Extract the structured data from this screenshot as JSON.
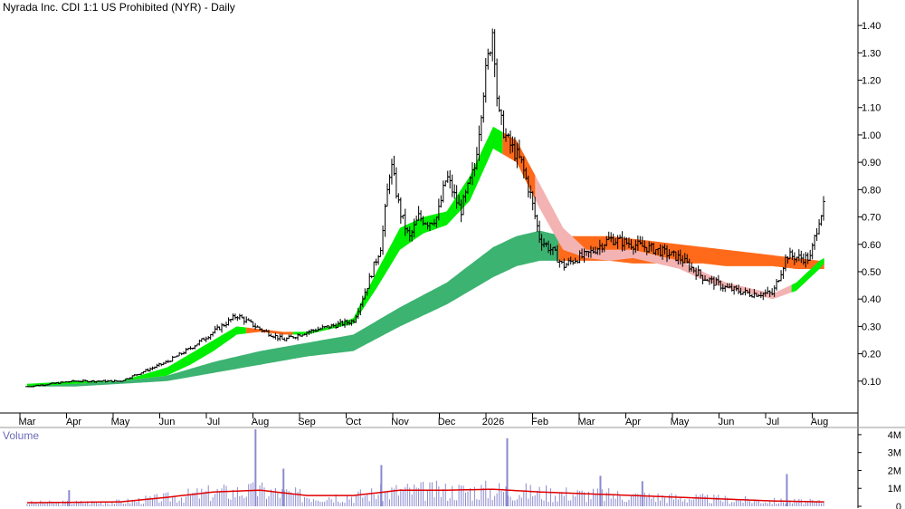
{
  "title": "Nyrada Inc. CDI 1:1 US Prohibited (NYR) - Daily",
  "colors": {
    "price_bar": "#000000",
    "gmma_short_up": "#00ee00",
    "gmma_short_down": "#ff6a1a",
    "gmma_short_fade": "#f4b3b3",
    "gmma_long_up": "#3cb371",
    "gmma_long_down": "#ff6a1a",
    "volume_bar": "#8a8ad0",
    "volume_ma": "#e00000",
    "axis": "#000000"
  },
  "chart_data": [
    {
      "type": "ohlc",
      "panel": "price",
      "title": "Nyrada Inc. CDI 1:1 US Prohibited (NYR) - Daily",
      "x_tick_labels": [
        "Mar",
        "Apr",
        "May",
        "Jun",
        "Jul",
        "Aug",
        "Sep",
        "Oct",
        "Nov",
        "Dec",
        "2026",
        "Feb",
        "Mar",
        "Apr",
        "May",
        "Jun",
        "Jul",
        "Aug"
      ],
      "y_tick_labels": [
        "0.10",
        "0.20",
        "0.30",
        "0.40",
        "0.50",
        "0.60",
        "0.70",
        "0.80",
        "0.90",
        "1.00",
        "1.10",
        "1.20",
        "1.30",
        "1.40"
      ],
      "y_ticks": [
        0.1,
        0.2,
        0.3,
        0.4,
        0.5,
        0.6,
        0.7,
        0.8,
        0.9,
        1.0,
        1.1,
        1.2,
        1.3,
        1.4
      ],
      "ylim": [
        0.0,
        1.46
      ],
      "grid": false,
      "close_series": {
        "name": "",
        "x_month_index": [
          0,
          1,
          2,
          3,
          3.5,
          4,
          4.5,
          5,
          5.5,
          6,
          6.5,
          7,
          7.3,
          7.6,
          7.8,
          8,
          8.2,
          8.4,
          8.6,
          8.8,
          9,
          9.3,
          9.6,
          9.8,
          10,
          10.1,
          10.3,
          10.6,
          10.8,
          11,
          11.3,
          11.5,
          11.8,
          12,
          12.5,
          13,
          13.5,
          14,
          14.5,
          15,
          15.5,
          16,
          16.3,
          16.6,
          16.8,
          17,
          17.1
        ],
        "values": [
          0.08,
          0.1,
          0.1,
          0.17,
          0.22,
          0.28,
          0.34,
          0.29,
          0.25,
          0.28,
          0.3,
          0.32,
          0.45,
          0.6,
          0.9,
          0.72,
          0.62,
          0.7,
          0.68,
          0.7,
          0.85,
          0.72,
          0.88,
          1.18,
          1.4,
          1.08,
          0.98,
          0.9,
          0.78,
          0.62,
          0.57,
          0.52,
          0.55,
          0.56,
          0.62,
          0.6,
          0.58,
          0.55,
          0.48,
          0.44,
          0.42,
          0.42,
          0.56,
          0.55,
          0.55,
          0.7,
          0.74
        ]
      },
      "gmma_short_band": {
        "x_month_index": [
          0,
          1,
          2,
          3,
          3.5,
          4,
          4.5,
          5,
          5.5,
          6,
          6.5,
          7,
          7.5,
          8,
          8.5,
          9,
          9.5,
          10,
          10.5,
          11,
          11.5,
          12,
          12.5,
          13,
          13.5,
          14,
          14.5,
          15,
          15.5,
          16,
          16.5,
          17,
          17.1
        ],
        "upper": [
          0.09,
          0.1,
          0.1,
          0.15,
          0.2,
          0.25,
          0.3,
          0.29,
          0.28,
          0.28,
          0.3,
          0.33,
          0.5,
          0.66,
          0.7,
          0.72,
          0.85,
          1.03,
          0.98,
          0.82,
          0.66,
          0.58,
          0.58,
          0.58,
          0.56,
          0.54,
          0.5,
          0.46,
          0.44,
          0.42,
          0.46,
          0.54,
          0.55
        ],
        "lower": [
          0.08,
          0.09,
          0.1,
          0.12,
          0.16,
          0.21,
          0.27,
          0.28,
          0.27,
          0.27,
          0.29,
          0.31,
          0.44,
          0.58,
          0.64,
          0.67,
          0.76,
          0.95,
          0.9,
          0.73,
          0.58,
          0.55,
          0.54,
          0.55,
          0.53,
          0.51,
          0.47,
          0.44,
          0.42,
          0.4,
          0.43,
          0.51,
          0.53
        ]
      },
      "gmma_long_band": {
        "x_month_index": [
          0,
          1,
          2,
          3,
          4,
          5,
          6,
          7,
          8,
          9,
          10,
          10.5,
          11,
          11.5,
          12,
          12.5,
          13,
          13.5,
          14,
          14.5,
          15,
          15.5,
          16,
          16.5,
          17,
          17.1
        ],
        "upper": [
          0.09,
          0.09,
          0.1,
          0.12,
          0.17,
          0.21,
          0.24,
          0.27,
          0.37,
          0.46,
          0.59,
          0.63,
          0.65,
          0.63,
          0.63,
          0.63,
          0.62,
          0.61,
          0.6,
          0.59,
          0.58,
          0.57,
          0.56,
          0.55,
          0.54,
          0.54
        ],
        "lower": [
          0.08,
          0.08,
          0.09,
          0.1,
          0.13,
          0.16,
          0.19,
          0.21,
          0.3,
          0.38,
          0.48,
          0.52,
          0.54,
          0.54,
          0.54,
          0.54,
          0.53,
          0.53,
          0.53,
          0.53,
          0.52,
          0.52,
          0.52,
          0.51,
          0.51,
          0.51
        ]
      }
    },
    {
      "type": "bar",
      "panel": "volume",
      "title": "Volume",
      "y_tick_labels": [
        "0",
        "1M",
        "2M",
        "3M",
        "4M"
      ],
      "y_ticks": [
        0,
        1000000,
        2000000,
        3000000,
        4000000
      ],
      "ylim": [
        0,
        4500000
      ],
      "volume_ma_series": {
        "name": "",
        "x_month_index": [
          0,
          1,
          2,
          3,
          4,
          5,
          6,
          7,
          8,
          9,
          10,
          11,
          12,
          13,
          14,
          15,
          16,
          17,
          17.1
        ],
        "values": [
          200000,
          220000,
          250000,
          500000,
          800000,
          900000,
          600000,
          600000,
          900000,
          900000,
          950000,
          800000,
          700000,
          600000,
          500000,
          400000,
          300000,
          250000,
          250000
        ]
      },
      "volume_spikes": {
        "x_month_index": [
          4.9,
          10.3,
          5.5,
          12.3,
          16.3,
          0.9,
          7.6,
          13.2
        ],
        "values": [
          4300000,
          3800000,
          2100000,
          1700000,
          1800000,
          900000,
          2300000,
          1400000
        ]
      }
    }
  ]
}
